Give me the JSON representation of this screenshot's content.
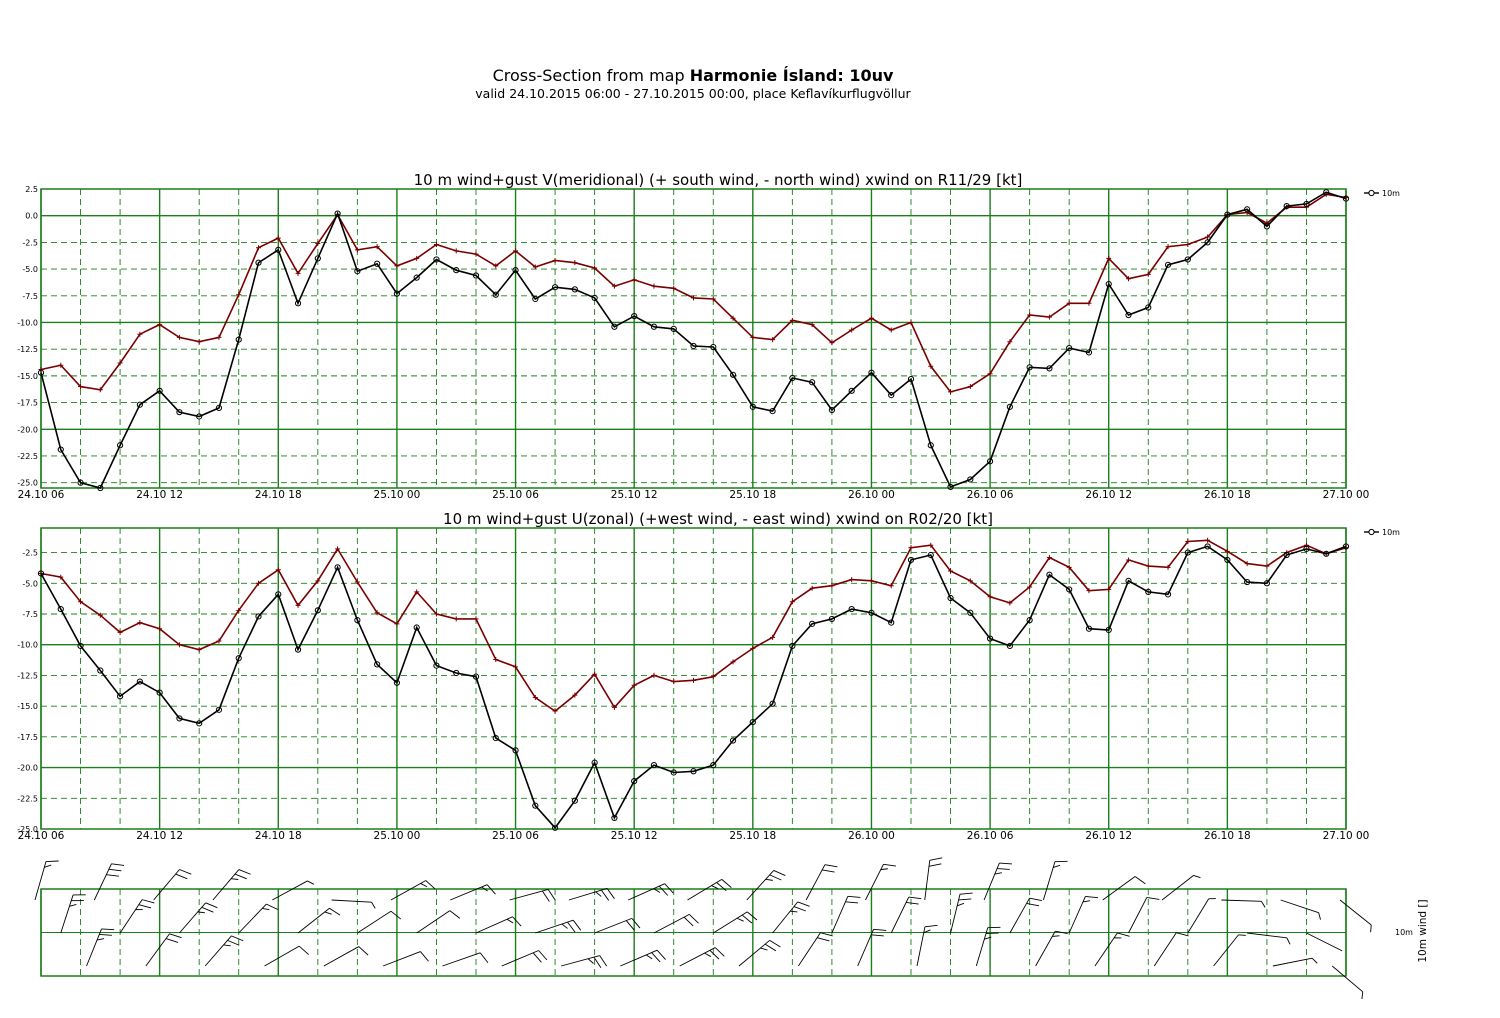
{
  "header": {
    "title_prefix": "Cross-Section from map ",
    "title_bold": "Harmonie Ísland: 10uv",
    "subtitle": "valid 24.10.2015 06:00 - 27.10.2015 00:00, place Keflavíkurflugvöllur"
  },
  "colors": {
    "grid": "#1a7f1a",
    "wind_line": "#000000",
    "gust_line": "#7a0000"
  },
  "barb_panel": {
    "legend_label": "10m",
    "axis_label": "10m wind []"
  },
  "chart_data": [
    {
      "type": "line",
      "title": "10 m wind+gust V(meridional) (+ south wind, - north wind) xwind on R11/29 [kt]",
      "x_tick_labels": [
        "24.10 06",
        "24.10 12",
        "24.10 18",
        "25.10 00",
        "25.10 06",
        "25.10 12",
        "25.10 18",
        "26.10 00",
        "26.10 06",
        "26.10 12",
        "26.10 18",
        "27.10 00"
      ],
      "y_tick_labels": [
        "2.5",
        "0.0",
        "-2.5",
        "-5.0",
        "-7.5",
        "-10.0",
        "-12.5",
        "-15.0",
        "-17.5",
        "-20.0",
        "-22.5",
        "-25.0"
      ],
      "ylim": [
        -25.5,
        2.5
      ],
      "x": "hours from 24.10 06, hourly, 0-66",
      "legend": "10m",
      "series": [
        {
          "name": "10m",
          "marker": "circle",
          "values": [
            -14.7,
            -21.9,
            -25.0,
            -25.5,
            -21.5,
            -17.7,
            -16.4,
            -18.4,
            -18.8,
            -18.0,
            -11.6,
            -4.4,
            -3.2,
            -8.2,
            -4.0,
            0.2,
            -5.2,
            -4.5,
            -7.3,
            -5.8,
            -4.1,
            -5.1,
            -5.6,
            -7.4,
            -5.1,
            -7.8,
            -6.7,
            -6.9,
            -7.7,
            -10.4,
            -9.4,
            -10.4,
            -10.6,
            -12.2,
            -12.3,
            -14.9,
            -17.9,
            -18.3,
            -15.2,
            -15.6,
            -18.2,
            -16.4,
            -14.7,
            -16.8,
            -15.3,
            -21.5,
            -25.4,
            -24.7,
            -23.0,
            -17.9,
            -14.2,
            -14.3,
            -12.4,
            -12.8,
            -6.4,
            -9.3,
            -8.6,
            -4.6,
            -4.1,
            -2.5,
            0.1,
            0.6,
            -1.0,
            0.9,
            1.1,
            2.2,
            1.6
          ]
        },
        {
          "name": "",
          "marker": "plus",
          "values": [
            -14.4,
            -14.0,
            -16.0,
            -16.3,
            -13.8,
            -11.1,
            -10.2,
            -11.4,
            -11.8,
            -11.4,
            -7.4,
            -3.0,
            -2.1,
            -5.4,
            -2.6,
            0.1,
            -3.2,
            -2.9,
            -4.7,
            -4.0,
            -2.7,
            -3.3,
            -3.6,
            -4.7,
            -3.3,
            -4.8,
            -4.2,
            -4.4,
            -4.9,
            -6.6,
            -6.0,
            -6.6,
            -6.8,
            -7.7,
            -7.8,
            -9.6,
            -11.4,
            -11.6,
            -9.8,
            -10.2,
            -11.9,
            -10.7,
            -9.6,
            -10.7,
            -10.0,
            -14.1,
            -16.5,
            -16.0,
            -14.8,
            -11.8,
            -9.3,
            -9.5,
            -8.2,
            -8.2,
            -4.0,
            -5.9,
            -5.5,
            -2.9,
            -2.7,
            -2.0,
            0.1,
            0.3,
            -0.7,
            0.8,
            0.8,
            2.0,
            1.7
          ]
        }
      ]
    },
    {
      "type": "line",
      "title": "10 m wind+gust U(zonal) (+west wind, - east wind) xwind on R02/20 [kt]",
      "x_tick_labels": [
        "24.10 06",
        "24.10 12",
        "24.10 18",
        "25.10 00",
        "25.10 06",
        "25.10 12",
        "25.10 18",
        "26.10 00",
        "26.10 06",
        "26.10 12",
        "26.10 18",
        "27.10 00"
      ],
      "y_tick_labels": [
        "-2.5",
        "-5.0",
        "-7.5",
        "-10.0",
        "-12.5",
        "-15.0",
        "-17.5",
        "-20.0",
        "-22.5",
        "-25.0"
      ],
      "ylim": [
        -25.0,
        -0.5
      ],
      "x": "hours from 24.10 06, hourly, 0-66",
      "legend": "10m",
      "series": [
        {
          "name": "10m",
          "marker": "circle",
          "values": [
            -4.2,
            -7.1,
            -10.1,
            -12.1,
            -14.2,
            -13.0,
            -13.9,
            -16.0,
            -16.4,
            -15.3,
            -11.1,
            -7.7,
            -5.9,
            -10.4,
            -7.2,
            -3.7,
            -8.0,
            -11.6,
            -13.1,
            -8.6,
            -11.7,
            -12.3,
            -12.6,
            -17.6,
            -18.6,
            -23.1,
            -24.9,
            -22.7,
            -19.6,
            -24.1,
            -21.1,
            -19.8,
            -20.4,
            -20.3,
            -19.8,
            -17.8,
            -16.3,
            -14.8,
            -10.1,
            -8.3,
            -7.9,
            -7.1,
            -7.4,
            -8.2,
            -3.1,
            -2.7,
            -6.2,
            -7.4,
            -9.5,
            -10.1,
            -8.0,
            -4.3,
            -5.5,
            -8.7,
            -8.8,
            -4.8,
            -5.7,
            -5.9,
            -2.5,
            -2.0,
            -3.1,
            -4.9,
            -5.0,
            -2.7,
            -2.2,
            -2.6,
            -2.0
          ]
        },
        {
          "name": "",
          "marker": "plus",
          "values": [
            -4.2,
            -4.5,
            -6.5,
            -7.6,
            -9.0,
            -8.2,
            -8.7,
            -10.0,
            -10.4,
            -9.7,
            -7.2,
            -5.0,
            -3.9,
            -6.8,
            -4.8,
            -2.2,
            -4.9,
            -7.4,
            -8.3,
            -5.7,
            -7.5,
            -7.9,
            -7.9,
            -11.2,
            -11.8,
            -14.3,
            -15.4,
            -14.1,
            -12.4,
            -15.1,
            -13.3,
            -12.5,
            -13.0,
            -12.9,
            -12.6,
            -11.4,
            -10.3,
            -9.4,
            -6.5,
            -5.4,
            -5.2,
            -4.7,
            -4.8,
            -5.2,
            -2.1,
            -1.9,
            -4.0,
            -4.8,
            -6.1,
            -6.6,
            -5.3,
            -2.9,
            -3.7,
            -5.6,
            -5.5,
            -3.1,
            -3.6,
            -3.7,
            -1.6,
            -1.5,
            -2.4,
            -3.4,
            -3.6,
            -2.5,
            -1.9,
            -2.6,
            -2.1
          ]
        }
      ]
    }
  ]
}
